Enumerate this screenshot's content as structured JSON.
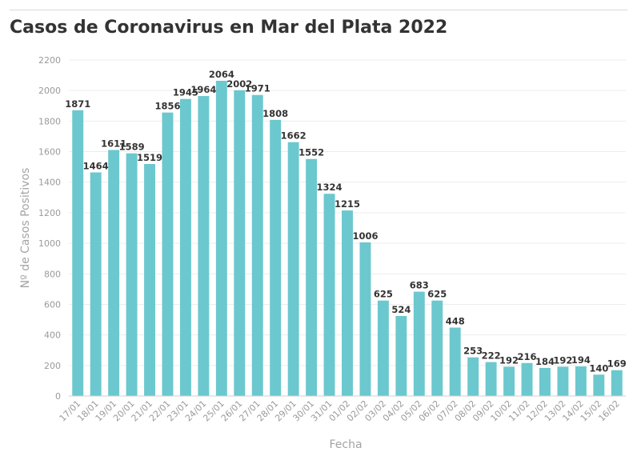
{
  "chart_data": {
    "type": "bar",
    "title": "Casos de Coronavirus en Mar del Plata 2022",
    "xlabel": "Fecha",
    "ylabel": "Nº de Casos Positivos",
    "ylim": [
      0,
      2200
    ],
    "yticks": [
      0,
      200,
      400,
      600,
      800,
      1000,
      1200,
      1400,
      1600,
      1800,
      2000,
      2200
    ],
    "grid": true,
    "color": "#6bc8ce",
    "categories": [
      "17/01",
      "18/01",
      "19/01",
      "20/01",
      "21/01",
      "22/01",
      "23/01",
      "24/01",
      "25/01",
      "26/01",
      "27/01",
      "28/01",
      "29/01",
      "30/01",
      "31/01",
      "01/02",
      "02/02",
      "03/02",
      "04/02",
      "05/02",
      "06/02",
      "07/02",
      "08/02",
      "09/02",
      "10/02",
      "11/02",
      "12/02",
      "13/02",
      "14/02",
      "15/02",
      "16/02"
    ],
    "values": [
      1871,
      1464,
      1611,
      1589,
      1519,
      1856,
      1945,
      1964,
      2064,
      2002,
      1971,
      1808,
      1662,
      1552,
      1324,
      1215,
      1006,
      625,
      524,
      683,
      625,
      448,
      253,
      222,
      192,
      216,
      184,
      192,
      194,
      140,
      169
    ]
  }
}
